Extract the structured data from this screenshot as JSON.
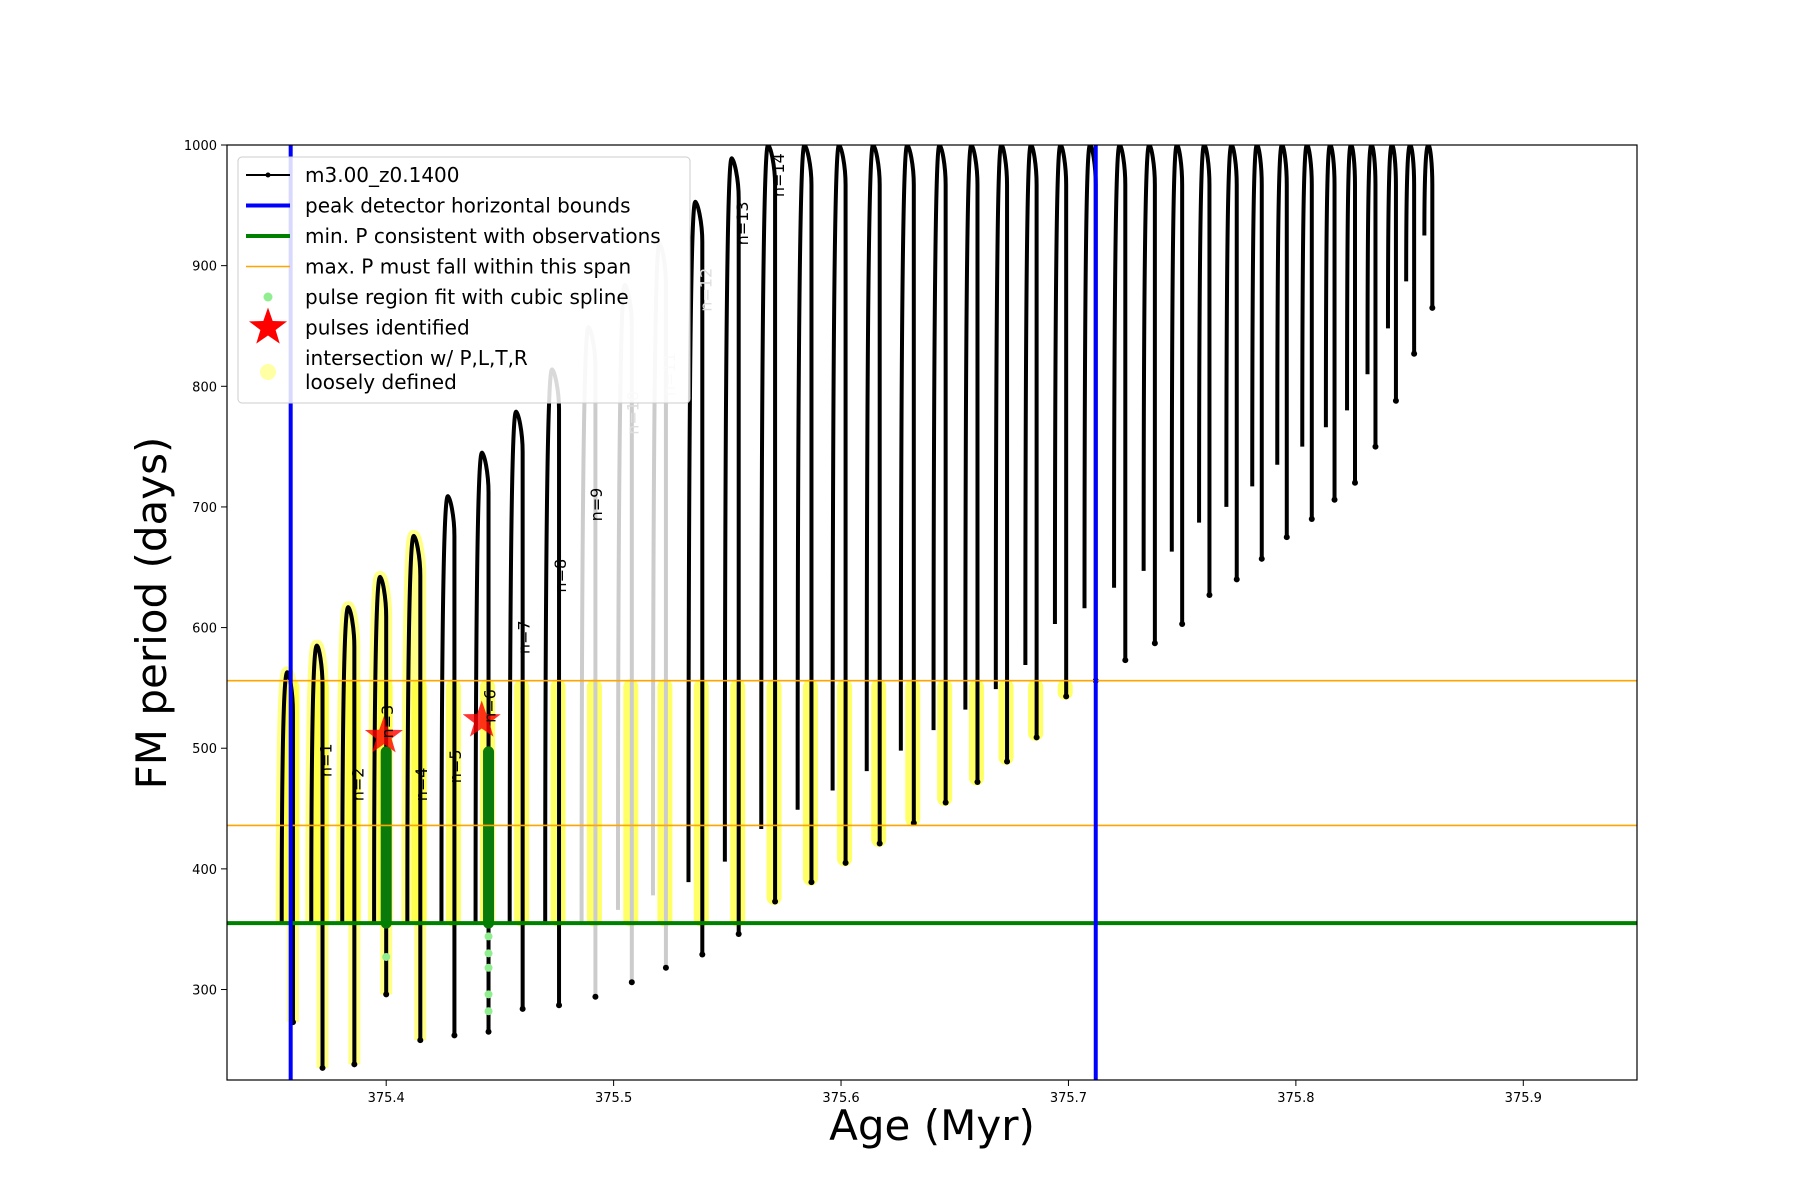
{
  "chart_data": {
    "type": "line",
    "title": "",
    "xlabel": "Age (Myr)",
    "ylabel": "FM period (days)",
    "xlim": [
      375.33,
      375.95
    ],
    "ylim": [
      225,
      1000
    ],
    "x_ticks": [
      375.4,
      375.5,
      375.6,
      375.7,
      375.8,
      375.9
    ],
    "x_tick_labels": [
      "375.4",
      "375.5",
      "375.6",
      "375.7",
      "375.8",
      "375.9"
    ],
    "y_ticks": [
      300,
      400,
      500,
      600,
      700,
      800,
      900,
      1000
    ],
    "y_tick_labels": [
      "300",
      "400",
      "500",
      "600",
      "700",
      "800",
      "900",
      "1000"
    ],
    "grid": false,
    "legend_position": "top-left",
    "legend": [
      {
        "label": "m3.00_z0.1400",
        "kind": "line-dot",
        "color": "#000000"
      },
      {
        "label": "peak detector horizontal bounds",
        "kind": "thick-line",
        "color": "#0000ff"
      },
      {
        "label": "min. P consistent with observations",
        "kind": "thick-line",
        "color": "#008000"
      },
      {
        "label": "max. P must fall within this span",
        "kind": "thin-line",
        "color": "#ffa500"
      },
      {
        "label": "pulse region fit with cubic spline",
        "kind": "dot",
        "color": "#90ee90"
      },
      {
        "label": "pulses identified",
        "kind": "star",
        "color": "#ff0000"
      },
      {
        "label": "intersection w/ P,L,T,R\nloosely defined",
        "kind": "circle",
        "color": "#ffff99"
      }
    ],
    "vertical_bounds": [
      375.358,
      375.712
    ],
    "min_period": 355,
    "max_period_span": [
      436,
      556
    ],
    "series": [
      {
        "name": "m3.00_z0.1400",
        "pulse_times": [
          375.359,
          375.372,
          375.386,
          375.4,
          375.415,
          375.43,
          375.445,
          375.46,
          375.476,
          375.492,
          375.508,
          375.523,
          375.539,
          375.555,
          375.571,
          375.587,
          375.602,
          375.617,
          375.632,
          375.646,
          375.66,
          375.673,
          375.686,
          375.699,
          375.712,
          375.725,
          375.738,
          375.75,
          375.762,
          375.774,
          375.785,
          375.796,
          375.807,
          375.817,
          375.826,
          375.835,
          375.844,
          375.852,
          375.86
        ],
        "peaks": [
          563,
          585,
          617,
          642,
          676,
          709,
          745,
          779,
          814,
          849,
          884,
          918,
          953,
          989,
          1000,
          1000,
          1000,
          1000,
          1000,
          1000,
          1000,
          1000,
          1000,
          1000,
          1000,
          1000,
          1000,
          1000,
          1000,
          1000,
          1000,
          1000,
          1000,
          1000,
          1000,
          1000,
          1000,
          1000,
          1000
        ],
        "minima": [
          273,
          235,
          238,
          296,
          258,
          262,
          265,
          284,
          287,
          294,
          306,
          318,
          329,
          346,
          373,
          389,
          405,
          421,
          438,
          455,
          472,
          489,
          509,
          543,
          556,
          573,
          587,
          603,
          627,
          640,
          657,
          675,
          690,
          706,
          720,
          750,
          788,
          827,
          865
        ],
        "gray_pulse_indices": [
          9,
          10,
          11
        ]
      }
    ],
    "pulses_identified": [
      {
        "x": 375.399,
        "y": 510
      },
      {
        "x": 375.442,
        "y": 523
      }
    ],
    "spline_fit_regions": [
      {
        "x": 375.4,
        "y_range": [
          355,
          497
        ],
        "tail": [
          327
        ]
      },
      {
        "x": 375.445,
        "y_range": [
          355,
          497
        ],
        "tail": [
          344,
          330,
          318,
          296,
          282
        ]
      }
    ],
    "annotations": [
      {
        "text": "n=1",
        "x": 375.376,
        "y": 490
      },
      {
        "text": "n=2",
        "x": 375.39,
        "y": 470
      },
      {
        "text": "n=3",
        "x": 375.403,
        "y": 522
      },
      {
        "text": "n=4",
        "x": 375.418,
        "y": 470
      },
      {
        "text": "n=5",
        "x": 375.433,
        "y": 485
      },
      {
        "text": "n=6",
        "x": 375.448,
        "y": 535
      },
      {
        "text": "n=7",
        "x": 375.463,
        "y": 592
      },
      {
        "text": "n=8",
        "x": 375.479,
        "y": 643
      },
      {
        "text": "n=9",
        "x": 375.495,
        "y": 702
      },
      {
        "text": "n=10",
        "x": 375.511,
        "y": 778
      },
      {
        "text": "n=11",
        "x": 375.527,
        "y": 810
      },
      {
        "text": "n=12",
        "x": 375.543,
        "y": 880
      },
      {
        "text": "n=13",
        "x": 375.559,
        "y": 935
      },
      {
        "text": "n=14",
        "x": 375.575,
        "y": 975
      }
    ]
  }
}
